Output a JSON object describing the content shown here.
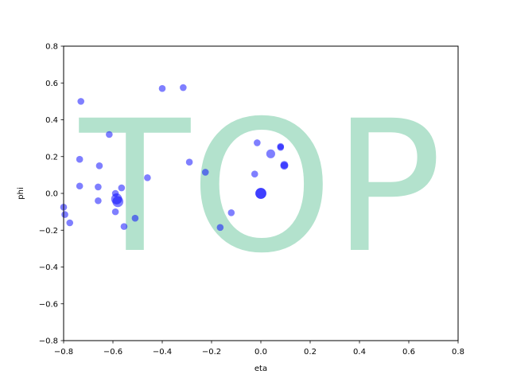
{
  "chart_data": {
    "type": "scatter",
    "title": "",
    "xlabel": "eta",
    "ylabel": "phi",
    "xlim": [
      -0.8,
      0.8
    ],
    "ylim": [
      -0.8,
      0.8
    ],
    "xticks": [
      -0.8,
      -0.6,
      -0.4,
      -0.2,
      0.0,
      0.2,
      0.4,
      0.6,
      0.8
    ],
    "yticks": [
      -0.8,
      -0.6,
      -0.4,
      -0.2,
      0.0,
      0.2,
      0.4,
      0.6,
      0.8
    ],
    "xtick_labels": [
      "−0.8",
      "−0.6",
      "−0.4",
      "−0.2",
      "0.0",
      "0.2",
      "0.4",
      "0.6",
      "0.8"
    ],
    "ytick_labels": [
      "−0.8",
      "−0.6",
      "−0.4",
      "−0.2",
      "0.0",
      "0.2",
      "0.4",
      "0.6",
      "0.8"
    ],
    "grid": false,
    "watermark_text": "TOP",
    "watermark_color": "#b3e2cd",
    "marker_color": "#0000ff",
    "marker_alpha": 0.5,
    "points": [
      {
        "x": -0.73,
        "y": 0.5,
        "s": 1
      },
      {
        "x": -0.4,
        "y": 0.57,
        "s": 1
      },
      {
        "x": -0.315,
        "y": 0.575,
        "s": 1
      },
      {
        "x": -0.615,
        "y": 0.32,
        "s": 1
      },
      {
        "x": -0.735,
        "y": 0.185,
        "s": 1
      },
      {
        "x": -0.655,
        "y": 0.15,
        "s": 1
      },
      {
        "x": -0.29,
        "y": 0.17,
        "s": 1
      },
      {
        "x": -0.225,
        "y": 0.115,
        "s": 1
      },
      {
        "x": -0.46,
        "y": 0.085,
        "s": 1
      },
      {
        "x": -0.735,
        "y": 0.04,
        "s": 1
      },
      {
        "x": -0.66,
        "y": 0.035,
        "s": 1
      },
      {
        "x": -0.565,
        "y": 0.03,
        "s": 1
      },
      {
        "x": -0.59,
        "y": 0.0,
        "s": 1
      },
      {
        "x": -0.585,
        "y": -0.03,
        "s": 1.6
      },
      {
        "x": -0.58,
        "y": -0.045,
        "s": 1.6
      },
      {
        "x": -0.66,
        "y": -0.04,
        "s": 1
      },
      {
        "x": -0.59,
        "y": -0.1,
        "s": 1
      },
      {
        "x": -0.51,
        "y": -0.135,
        "s": 1
      },
      {
        "x": -0.555,
        "y": -0.18,
        "s": 1
      },
      {
        "x": -0.8,
        "y": -0.075,
        "s": 1
      },
      {
        "x": -0.795,
        "y": -0.115,
        "s": 1
      },
      {
        "x": -0.775,
        "y": -0.16,
        "s": 1
      },
      {
        "x": -0.165,
        "y": -0.185,
        "s": 1
      },
      {
        "x": -0.12,
        "y": -0.105,
        "s": 1
      },
      {
        "x": -0.015,
        "y": 0.275,
        "s": 1
      },
      {
        "x": 0.04,
        "y": 0.215,
        "s": 1.3
      },
      {
        "x": 0.08,
        "y": 0.25,
        "s": 1
      },
      {
        "x": 0.08,
        "y": 0.255,
        "s": 1
      },
      {
        "x": 0.095,
        "y": 0.15,
        "s": 1.15
      },
      {
        "x": 0.095,
        "y": 0.155,
        "s": 1.15
      },
      {
        "x": -0.025,
        "y": 0.105,
        "s": 1
      },
      {
        "x": 0.0,
        "y": 0.0,
        "s": 1.6
      },
      {
        "x": 0.0,
        "y": 0.0,
        "s": 1.6
      }
    ]
  }
}
